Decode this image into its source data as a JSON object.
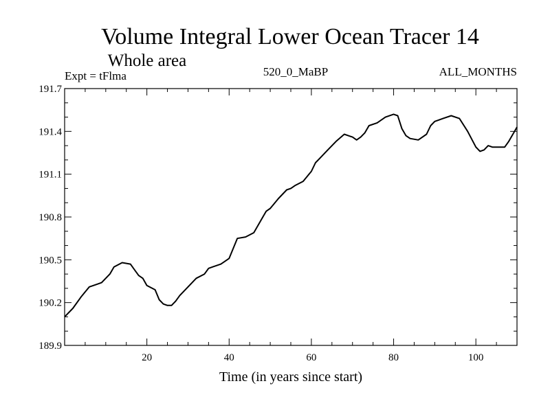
{
  "chart_data": {
    "type": "line",
    "title": "Volume Integral Lower Ocean Tracer 14",
    "subtitle": "Whole area",
    "annotations": {
      "left": "Expt = tFlma",
      "center": "520_0_MaBP",
      "right": "ALL_MONTHS"
    },
    "xlabel": "Time (in years since start)",
    "ylabel": "",
    "xlim": [
      0,
      110
    ],
    "ylim": [
      189.9,
      191.7
    ],
    "xticks_major": [
      20,
      40,
      60,
      80,
      100
    ],
    "xtick_labels": [
      "20",
      "40",
      "60",
      "80",
      "100"
    ],
    "yticks_major": [
      189.9,
      190.2,
      190.5,
      190.8,
      191.1,
      191.4,
      191.7
    ],
    "ytick_labels": [
      "189.9",
      "190.2",
      "190.5",
      "190.8",
      "191.1",
      "191.4",
      "191.7"
    ],
    "series": [
      {
        "name": "Lower Ocean Tracer 14",
        "x": [
          0,
          2,
          4,
          6,
          8,
          9,
          11,
          12,
          14,
          16,
          17,
          18,
          19,
          20,
          22,
          23,
          24,
          25,
          26,
          27,
          28,
          30,
          32,
          34,
          35,
          36,
          38,
          40,
          42,
          44,
          46,
          48,
          49,
          50,
          52,
          54,
          55,
          56,
          58,
          60,
          61,
          62,
          64,
          66,
          68,
          69,
          70,
          71,
          72,
          73,
          74,
          76,
          78,
          80,
          81,
          82,
          83,
          84,
          86,
          88,
          89,
          90,
          92,
          94,
          96,
          98,
          100,
          101,
          102,
          103,
          104,
          106,
          107,
          108,
          109,
          110
        ],
        "y": [
          190.1,
          190.16,
          190.24,
          190.31,
          190.33,
          190.34,
          190.4,
          190.45,
          190.48,
          190.47,
          190.43,
          190.39,
          190.37,
          190.32,
          190.29,
          190.22,
          190.19,
          190.18,
          190.18,
          190.21,
          190.25,
          190.31,
          190.37,
          190.4,
          190.44,
          190.45,
          190.47,
          190.51,
          190.65,
          190.66,
          190.69,
          190.79,
          190.84,
          190.86,
          190.93,
          190.99,
          191.0,
          191.02,
          191.05,
          191.12,
          191.18,
          191.21,
          191.27,
          191.33,
          191.38,
          191.37,
          191.36,
          191.34,
          191.36,
          191.39,
          191.44,
          191.46,
          191.5,
          191.52,
          191.51,
          191.42,
          191.37,
          191.35,
          191.34,
          191.38,
          191.44,
          191.47,
          191.49,
          191.51,
          191.49,
          191.4,
          191.29,
          191.26,
          191.27,
          191.3,
          191.29,
          191.29,
          191.29,
          191.33,
          191.38,
          191.43
        ]
      }
    ],
    "grid": false,
    "line_color": "#000000"
  }
}
